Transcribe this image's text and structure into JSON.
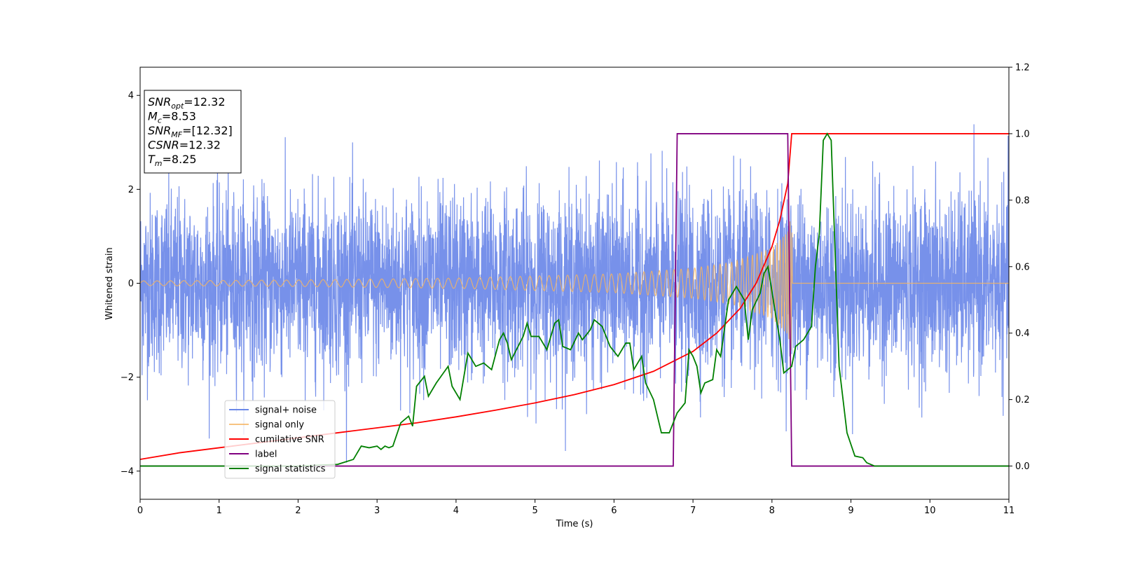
{
  "chart_data": {
    "type": "line",
    "xlabel": "Time (s)",
    "ylabel": "Whitened strain",
    "xlim": [
      0,
      11
    ],
    "ylim": [
      -4.6,
      4.6
    ],
    "y2lim": [
      -0.1,
      1.2
    ],
    "x_ticks": [
      "0",
      "1",
      "2",
      "3",
      "4",
      "5",
      "6",
      "7",
      "8",
      "9",
      "10",
      "11"
    ],
    "y_ticks": [
      "−4",
      "−2",
      "0",
      "2",
      "4"
    ],
    "y2_ticks": [
      "0.0",
      "0.2",
      "0.4",
      "0.6",
      "0.8",
      "1.0",
      "1.2"
    ],
    "grid": false,
    "legend_position": "lower-left",
    "info_box": [
      {
        "sym": "SNR",
        "sub": "opt",
        "val": "=12.32"
      },
      {
        "sym": "M",
        "sub": "c",
        "val": "=8.53"
      },
      {
        "sym": "SNR",
        "sub": "MF",
        "val": "=[12.32]"
      },
      {
        "sym": "CSNR",
        "sub": "",
        "val": "=12.32"
      },
      {
        "sym": "T",
        "sub": "m",
        "val": "=8.25"
      }
    ],
    "series": [
      {
        "name": "signal+ noise",
        "color": "#6b88e8",
        "axis": "left",
        "kind": "noise",
        "description": "whitened noise, roughly ±2 spread with spikes up to about 4.2 and down to about −4.1, spanning t=0 to 11",
        "noise_envelope_range": [
          -4.1,
          4.2
        ]
      },
      {
        "name": "signal only",
        "color": "#f5b461",
        "axis": "left",
        "kind": "chirp",
        "amplitude_envelope": [
          [
            0,
            0.05
          ],
          [
            2,
            0.07
          ],
          [
            4,
            0.11
          ],
          [
            6,
            0.2
          ],
          [
            7,
            0.32
          ],
          [
            7.5,
            0.45
          ],
          [
            8,
            0.75
          ],
          [
            8.2,
            1.1
          ],
          [
            8.25,
            1.5
          ],
          [
            8.26,
            0.0
          ],
          [
            11,
            0.0
          ]
        ]
      },
      {
        "name": "cumilative SNR",
        "color": "#ff0000",
        "axis": "right",
        "points": [
          [
            0,
            0.02
          ],
          [
            0.5,
            0.04
          ],
          [
            1,
            0.055
          ],
          [
            1.5,
            0.07
          ],
          [
            2,
            0.085
          ],
          [
            2.5,
            0.1
          ],
          [
            3,
            0.115
          ],
          [
            3.5,
            0.13
          ],
          [
            4,
            0.148
          ],
          [
            4.5,
            0.168
          ],
          [
            5,
            0.19
          ],
          [
            5.5,
            0.215
          ],
          [
            6,
            0.245
          ],
          [
            6.5,
            0.285
          ],
          [
            7,
            0.345
          ],
          [
            7.3,
            0.4
          ],
          [
            7.6,
            0.475
          ],
          [
            7.8,
            0.55
          ],
          [
            8,
            0.66
          ],
          [
            8.1,
            0.74
          ],
          [
            8.2,
            0.85
          ],
          [
            8.25,
            1.0
          ],
          [
            11,
            1.0
          ]
        ]
      },
      {
        "name": "label",
        "color": "#800080",
        "axis": "right",
        "points": [
          [
            0,
            0
          ],
          [
            6.75,
            0
          ],
          [
            6.8,
            1
          ],
          [
            8.2,
            1
          ],
          [
            8.25,
            0
          ],
          [
            11,
            0
          ]
        ]
      },
      {
        "name": "signal statistics",
        "color": "#008000",
        "axis": "right",
        "points": [
          [
            0,
            0.0
          ],
          [
            1,
            0.0
          ],
          [
            2,
            0.0
          ],
          [
            2.5,
            0.005
          ],
          [
            2.7,
            0.02
          ],
          [
            2.8,
            0.06
          ],
          [
            2.9,
            0.055
          ],
          [
            3.0,
            0.06
          ],
          [
            3.05,
            0.05
          ],
          [
            3.1,
            0.06
          ],
          [
            3.15,
            0.055
          ],
          [
            3.2,
            0.06
          ],
          [
            3.3,
            0.13
          ],
          [
            3.4,
            0.15
          ],
          [
            3.45,
            0.12
          ],
          [
            3.5,
            0.24
          ],
          [
            3.6,
            0.27
          ],
          [
            3.65,
            0.21
          ],
          [
            3.75,
            0.25
          ],
          [
            3.9,
            0.3
          ],
          [
            3.95,
            0.24
          ],
          [
            4.05,
            0.2
          ],
          [
            4.15,
            0.34
          ],
          [
            4.25,
            0.3
          ],
          [
            4.35,
            0.31
          ],
          [
            4.45,
            0.29
          ],
          [
            4.55,
            0.38
          ],
          [
            4.6,
            0.4
          ],
          [
            4.65,
            0.37
          ],
          [
            4.7,
            0.32
          ],
          [
            4.85,
            0.39
          ],
          [
            4.9,
            0.43
          ],
          [
            4.95,
            0.39
          ],
          [
            5.05,
            0.39
          ],
          [
            5.15,
            0.35
          ],
          [
            5.25,
            0.43
          ],
          [
            5.3,
            0.44
          ],
          [
            5.35,
            0.36
          ],
          [
            5.45,
            0.35
          ],
          [
            5.55,
            0.4
          ],
          [
            5.6,
            0.38
          ],
          [
            5.7,
            0.41
          ],
          [
            5.75,
            0.44
          ],
          [
            5.85,
            0.42
          ],
          [
            5.95,
            0.36
          ],
          [
            6.05,
            0.33
          ],
          [
            6.15,
            0.37
          ],
          [
            6.2,
            0.37
          ],
          [
            6.25,
            0.29
          ],
          [
            6.35,
            0.33
          ],
          [
            6.4,
            0.25
          ],
          [
            6.5,
            0.2
          ],
          [
            6.6,
            0.1
          ],
          [
            6.7,
            0.1
          ],
          [
            6.8,
            0.16
          ],
          [
            6.9,
            0.19
          ],
          [
            6.95,
            0.35
          ],
          [
            7.0,
            0.33
          ],
          [
            7.05,
            0.3
          ],
          [
            7.1,
            0.22
          ],
          [
            7.15,
            0.25
          ],
          [
            7.25,
            0.26
          ],
          [
            7.3,
            0.35
          ],
          [
            7.35,
            0.33
          ],
          [
            7.45,
            0.5
          ],
          [
            7.55,
            0.54
          ],
          [
            7.65,
            0.5
          ],
          [
            7.7,
            0.38
          ],
          [
            7.75,
            0.47
          ],
          [
            7.85,
            0.52
          ],
          [
            7.9,
            0.58
          ],
          [
            7.95,
            0.6
          ],
          [
            8.05,
            0.45
          ],
          [
            8.1,
            0.38
          ],
          [
            8.15,
            0.28
          ],
          [
            8.25,
            0.3
          ],
          [
            8.3,
            0.36
          ],
          [
            8.4,
            0.38
          ],
          [
            8.5,
            0.42
          ],
          [
            8.55,
            0.6
          ],
          [
            8.6,
            0.7
          ],
          [
            8.65,
            0.98
          ],
          [
            8.7,
            1.0
          ],
          [
            8.75,
            0.98
          ],
          [
            8.85,
            0.3
          ],
          [
            8.95,
            0.1
          ],
          [
            9.05,
            0.03
          ],
          [
            9.15,
            0.025
          ],
          [
            9.2,
            0.01
          ],
          [
            9.3,
            0.0
          ],
          [
            11,
            0.0
          ]
        ]
      }
    ]
  }
}
